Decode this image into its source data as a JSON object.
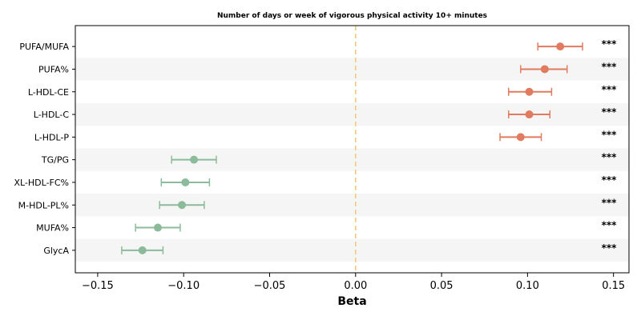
{
  "chart_data": {
    "type": "forest",
    "title": "Number of days or week of vigorous physical activity 10+ minutes",
    "xlabel": "Beta",
    "ylabel": "",
    "xlim": [
      -0.163,
      0.159
    ],
    "xticks": [
      -0.15,
      -0.1,
      -0.05,
      0.0,
      0.05,
      0.1,
      0.15
    ],
    "xtick_labels": [
      "−0.15",
      "−0.10",
      "−0.05",
      "0.00",
      "0.05",
      "0.10",
      "0.15"
    ],
    "reference_line": 0.0,
    "grid": false,
    "legend": "none",
    "colors": {
      "positive": "#e07b5f",
      "negative": "#8bbb9b",
      "reference_line": "#f0c87a",
      "row_band": "#f5f5f5"
    },
    "rows": [
      {
        "label": "PUFA/MUFA",
        "beta": 0.119,
        "ci_low": 0.106,
        "ci_high": 0.132,
        "significance": "***"
      },
      {
        "label": "PUFA%",
        "beta": 0.11,
        "ci_low": 0.096,
        "ci_high": 0.123,
        "significance": "***"
      },
      {
        "label": "L-HDL-CE",
        "beta": 0.101,
        "ci_low": 0.089,
        "ci_high": 0.114,
        "significance": "***"
      },
      {
        "label": "L-HDL-C",
        "beta": 0.101,
        "ci_low": 0.089,
        "ci_high": 0.113,
        "significance": "***"
      },
      {
        "label": "L-HDL-P",
        "beta": 0.096,
        "ci_low": 0.084,
        "ci_high": 0.108,
        "significance": "***"
      },
      {
        "label": "TG/PG",
        "beta": -0.094,
        "ci_low": -0.107,
        "ci_high": -0.081,
        "significance": "***"
      },
      {
        "label": "XL-HDL-FC%",
        "beta": -0.099,
        "ci_low": -0.113,
        "ci_high": -0.085,
        "significance": "***"
      },
      {
        "label": "M-HDL-PL%",
        "beta": -0.101,
        "ci_low": -0.114,
        "ci_high": -0.088,
        "significance": "***"
      },
      {
        "label": "MUFA%",
        "beta": -0.115,
        "ci_low": -0.128,
        "ci_high": -0.102,
        "significance": "***"
      },
      {
        "label": "GlycA",
        "beta": -0.124,
        "ci_low": -0.136,
        "ci_high": -0.112,
        "significance": "***"
      }
    ]
  }
}
